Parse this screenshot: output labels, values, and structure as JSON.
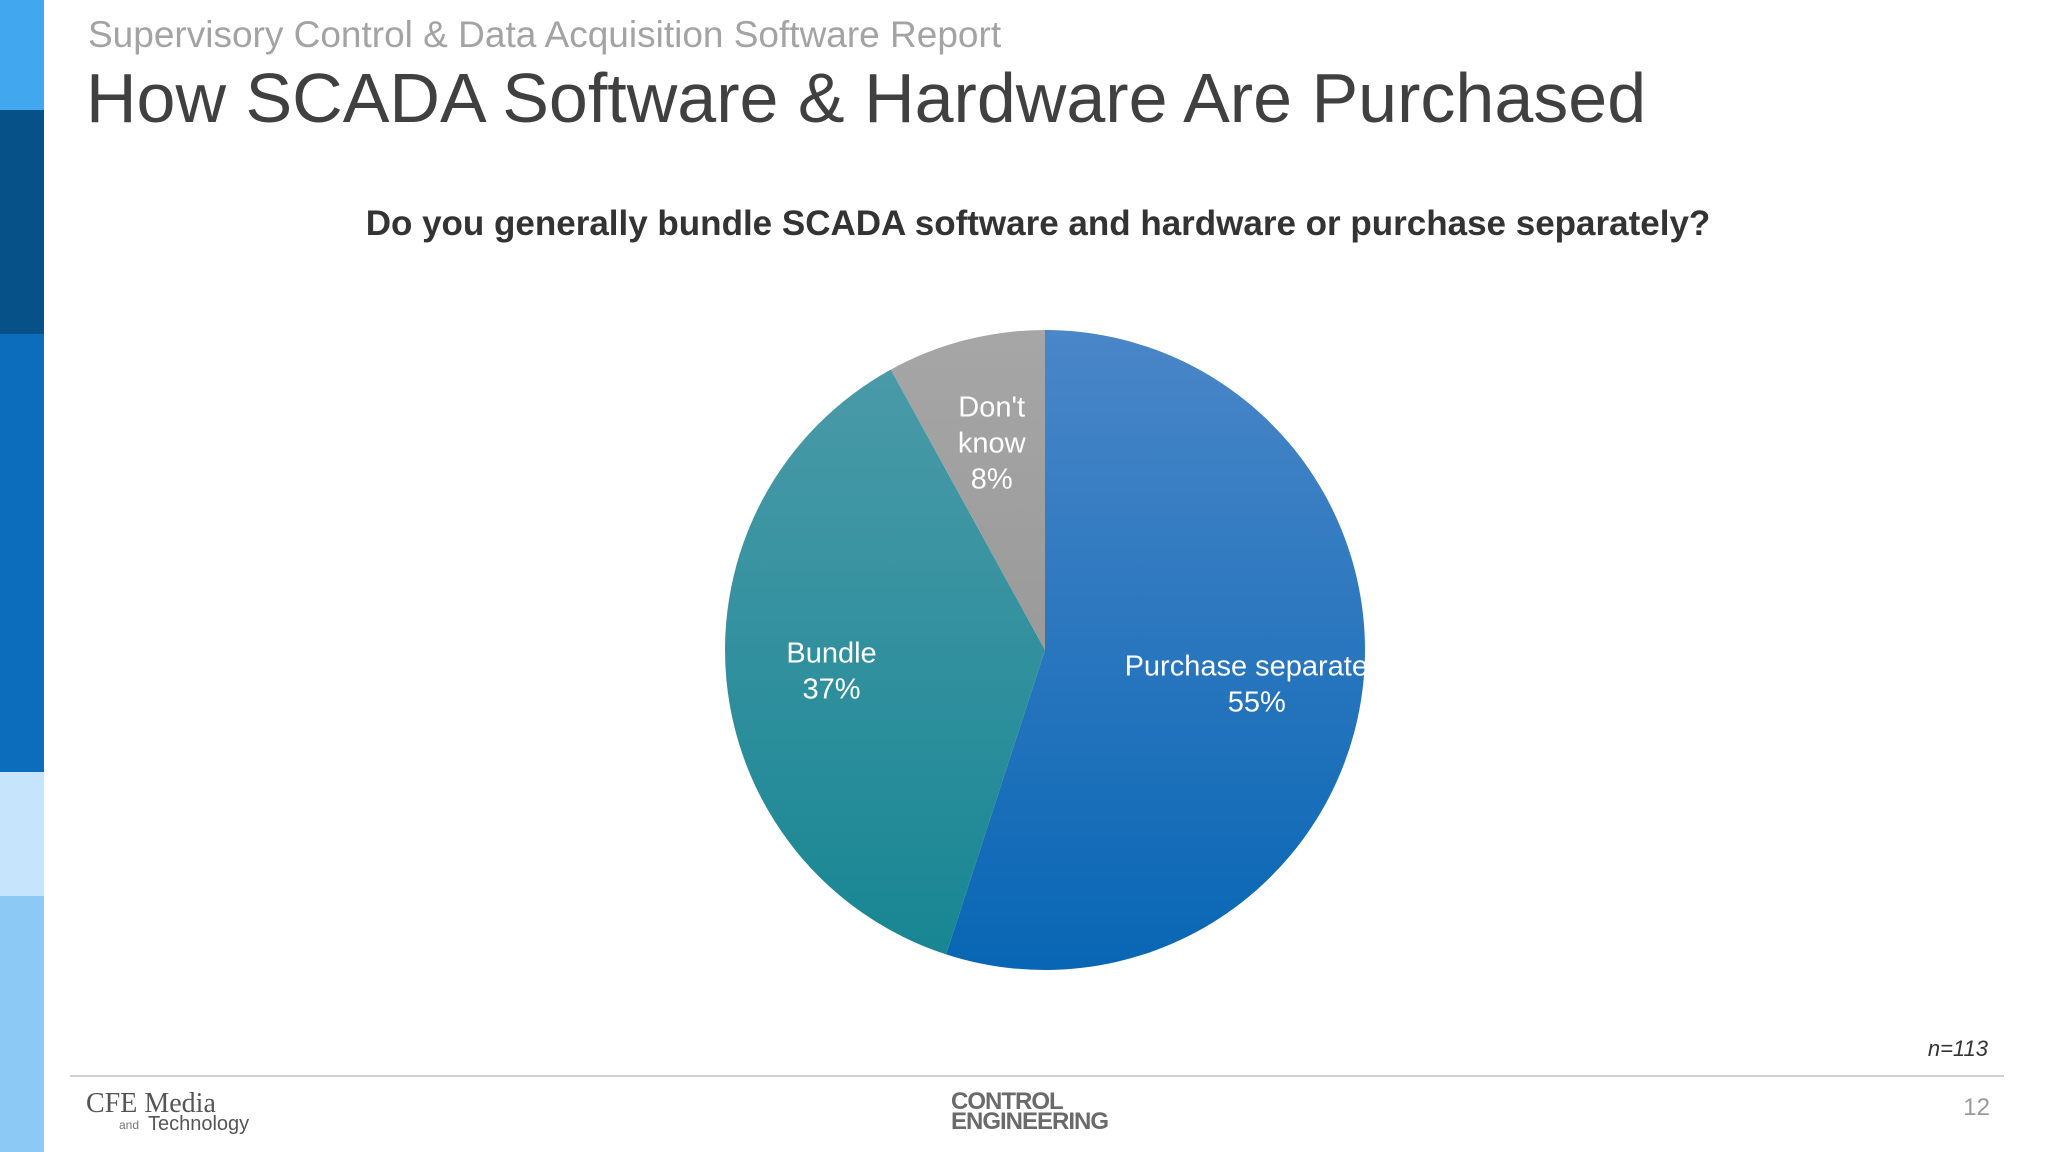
{
  "header": {
    "subtitle": "Supervisory Control & Data Acquisition Software Report",
    "title": "How SCADA Software & Hardware Are Purchased"
  },
  "question": "Do you generally bundle SCADA software and hardware or purchase separately?",
  "chart_data": {
    "type": "pie",
    "title": "Do you generally bundle SCADA software and hardware or purchase separately?",
    "slices": [
      {
        "label_lines": [
          "Purchase separately"
        ],
        "value": 55,
        "display": "55%",
        "color_top": "#4a86c8",
        "color_bottom": "#0866b4",
        "label_color": "#ffffff"
      },
      {
        "label_lines": [
          "Bundle"
        ],
        "value": 37,
        "display": "37%",
        "color_top": "#4a9aa8",
        "color_bottom": "#188693",
        "label_color": "#ffffff"
      },
      {
        "label_lines": [
          "Don't",
          "know"
        ],
        "value": 8,
        "display": "8%",
        "color_top": "#a6a6a6",
        "color_bottom": "#9a9a9a",
        "label_color": "#ffffff"
      }
    ],
    "start_angle_deg": 0,
    "direction": "clockwise",
    "legend": "none",
    "sample_size": "n=113"
  },
  "footer": {
    "page_number": "12",
    "left_logo": {
      "main": "CFE Media",
      "and": "and",
      "sub": "Technology"
    },
    "center_logo": {
      "line1": "CONTROL",
      "line2": "ENGINEERING"
    }
  },
  "colors": {
    "strip": [
      "#41a7ef",
      "#075189",
      "#0b6dbb",
      "#c6e4fb",
      "#8cc9f4"
    ],
    "title_text": "#404040",
    "subtitle_text": "#a3a3a3",
    "question_text": "#333333"
  }
}
